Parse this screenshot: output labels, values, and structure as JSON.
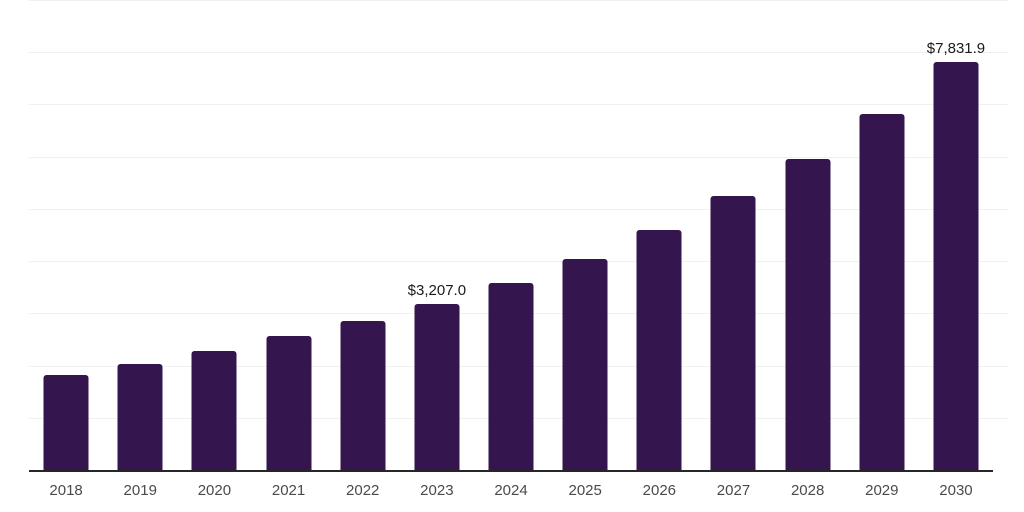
{
  "chart_data": {
    "type": "bar",
    "title": "",
    "xlabel": "",
    "ylabel": "",
    "categories": [
      "2018",
      "2019",
      "2020",
      "2021",
      "2022",
      "2023",
      "2024",
      "2025",
      "2026",
      "2027",
      "2028",
      "2029",
      "2030"
    ],
    "values": [
      1845,
      2040,
      2295,
      2580,
      2865,
      3207,
      3600,
      4065,
      4610,
      5260,
      5970,
      6835,
      7831.9
    ],
    "data_labels": [
      "",
      "",
      "",
      "",
      "",
      "$3,207.0",
      "",
      "",
      "",
      "",
      "",
      "",
      "$7,831.9"
    ],
    "ylim": [
      0,
      9000
    ],
    "grid_step": 1000,
    "grid": "horizontal-only",
    "legend": "none",
    "y_tick_labels_visible": false,
    "colors": {
      "bar": "#34154d",
      "gridline": "#f0f0f0",
      "axis_line": "#262626",
      "tick_label": "#4a4a4a",
      "data_label": "#1a1a1a",
      "background": "#ffffff"
    }
  }
}
